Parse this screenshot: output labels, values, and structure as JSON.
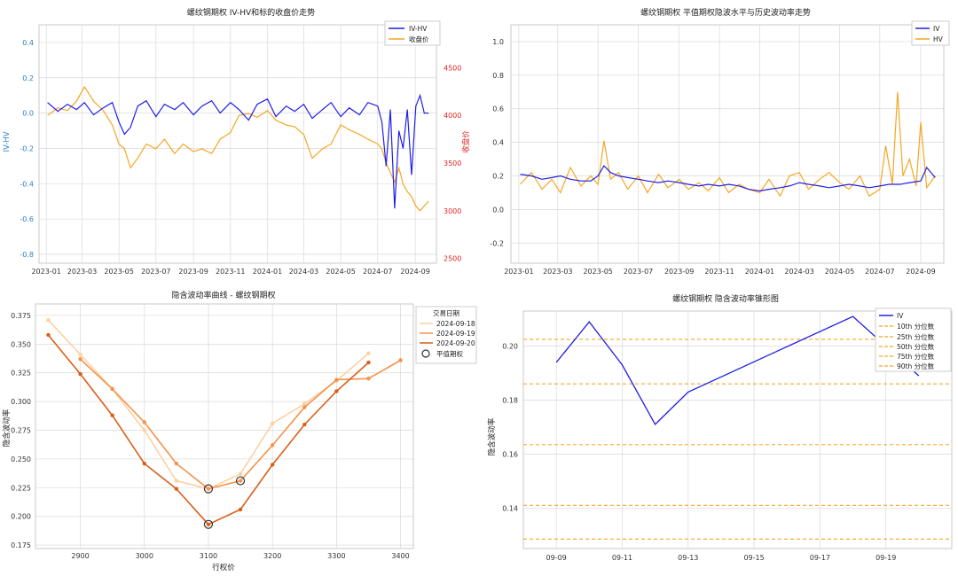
{
  "colors": {
    "blue": "#1f1fe8",
    "orange": "#f5a623",
    "red": "#e02020",
    "grid": "#d9d9d9"
  },
  "panels": [
    {
      "id": "p1",
      "title": "螺纹钢期权 IV-HV和标的收盘价走势",
      "ylabel": "IV-HV",
      "y2label": "收盘价",
      "xticks": [
        "2023-01",
        "2023-03",
        "2023-05",
        "2023-07",
        "2023-09",
        "2023-11",
        "2024-01",
        "2024-03",
        "2024-05",
        "2024-07",
        "2024-09"
      ],
      "yticks": [
        "0.4",
        "0.2",
        "0.0",
        "-0.2",
        "-0.4",
        "-0.6",
        "-0.8"
      ],
      "y2ticks": [
        "4500",
        "4000",
        "3500",
        "3000",
        "2500"
      ],
      "legend": [
        "IV-HV",
        "收盘价"
      ]
    },
    {
      "id": "p2",
      "title": "螺纹钢期权 平值期权隐波水平与历史波动率走势",
      "xticks": [
        "2023-01",
        "2023-03",
        "2023-05",
        "2023-07",
        "2023-09",
        "2023-11",
        "2024-01",
        "2024-03",
        "2024-05",
        "2024-07",
        "2024-09"
      ],
      "yticks": [
        "1.0",
        "0.8",
        "0.6",
        "0.4",
        "0.2",
        "0.0",
        "-0.2"
      ],
      "legend": [
        "IV",
        "HV"
      ]
    },
    {
      "id": "p3",
      "title": "隐含波动率曲线 - 螺纹钢期权",
      "xlabel": "行权价",
      "ylabel": "隐含波动率",
      "xticks": [
        "2900",
        "3000",
        "3100",
        "3200",
        "3300",
        "3400"
      ],
      "yticks": [
        "0.375",
        "0.350",
        "0.325",
        "0.300",
        "0.275",
        "0.250",
        "0.225",
        "0.200",
        "0.175"
      ],
      "legend_title": "交易日期",
      "legend": [
        "2024-09-18",
        "2024-09-19",
        "2024-09-20",
        "平值期权"
      ]
    },
    {
      "id": "p4",
      "title": "螺纹钢期权 隐含波动率锥形图",
      "ylabel": "隐含波动率",
      "xticks": [
        "09-09",
        "09-11",
        "09-13",
        "09-15",
        "09-17",
        "09-19"
      ],
      "yticks": [
        "0.20",
        "0.18",
        "0.16",
        "0.14"
      ],
      "legend": [
        "IV",
        "10th 分位数",
        "25th 分位数",
        "50th 分位数",
        "75th 分位数",
        "90th 分位数"
      ]
    }
  ],
  "chart_data": [
    {
      "type": "line",
      "title": "螺纹钢期权 IV-HV和标的收盘价走势",
      "ylabel": "IV-HV",
      "y2label": "收盘价",
      "ylim": [
        -0.85,
        0.5
      ],
      "y2lim": [
        2450,
        4950
      ],
      "x_range": [
        "2023-01",
        "2024-10"
      ],
      "series": [
        {
          "name": "IV-HV",
          "axis": "left",
          "color": "#1f1fe8",
          "x": [
            "2023-01-03",
            "2023-01-20",
            "2023-02-05",
            "2023-02-20",
            "2023-03-05",
            "2023-03-20",
            "2023-04-05",
            "2023-04-20",
            "2023-05-01",
            "2023-05-10",
            "2023-05-20",
            "2023-06-01",
            "2023-06-15",
            "2023-07-01",
            "2023-07-15",
            "2023-08-01",
            "2023-08-15",
            "2023-09-01",
            "2023-09-15",
            "2023-10-01",
            "2023-10-15",
            "2023-11-01",
            "2023-11-15",
            "2023-12-01",
            "2023-12-15",
            "2024-01-01",
            "2024-01-15",
            "2024-02-01",
            "2024-02-15",
            "2024-03-01",
            "2024-03-15",
            "2024-04-01",
            "2024-04-15",
            "2024-05-01",
            "2024-05-15",
            "2024-06-01",
            "2024-06-15",
            "2024-07-01",
            "2024-07-08",
            "2024-07-15",
            "2024-07-22",
            "2024-07-29",
            "2024-08-05",
            "2024-08-12",
            "2024-08-19",
            "2024-08-26",
            "2024-09-02",
            "2024-09-09",
            "2024-09-16",
            "2024-09-23"
          ],
          "y": [
            0.06,
            0.01,
            0.05,
            0.02,
            0.06,
            -0.01,
            0.03,
            0.06,
            -0.05,
            -0.12,
            -0.08,
            0.04,
            0.07,
            -0.02,
            0.05,
            0.02,
            0.06,
            -0.01,
            0.04,
            0.07,
            0.0,
            0.06,
            0.02,
            -0.04,
            0.05,
            0.08,
            -0.02,
            0.04,
            0.01,
            0.05,
            -0.03,
            0.02,
            0.06,
            -0.02,
            0.03,
            -0.01,
            0.06,
            0.04,
            -0.05,
            -0.3,
            0.02,
            -0.54,
            -0.1,
            -0.2,
            0.02,
            -0.35,
            0.04,
            0.1,
            0.0,
            0.0
          ]
        },
        {
          "name": "收盘价",
          "axis": "right",
          "color": "#f5a623",
          "x": [
            "2023-01-03",
            "2023-01-20",
            "2023-02-05",
            "2023-02-20",
            "2023-03-05",
            "2023-03-20",
            "2023-04-05",
            "2023-04-20",
            "2023-05-01",
            "2023-05-10",
            "2023-05-20",
            "2023-06-01",
            "2023-06-15",
            "2023-07-01",
            "2023-07-15",
            "2023-08-01",
            "2023-08-15",
            "2023-09-01",
            "2023-09-15",
            "2023-10-01",
            "2023-10-15",
            "2023-11-01",
            "2023-11-15",
            "2023-12-01",
            "2023-12-15",
            "2024-01-01",
            "2024-01-15",
            "2024-02-01",
            "2024-02-15",
            "2024-03-01",
            "2024-03-15",
            "2024-04-01",
            "2024-04-15",
            "2024-05-01",
            "2024-05-15",
            "2024-06-01",
            "2024-06-15",
            "2024-07-01",
            "2024-07-08",
            "2024-07-15",
            "2024-07-22",
            "2024-07-29",
            "2024-08-05",
            "2024-08-12",
            "2024-08-19",
            "2024-08-26",
            "2024-09-02",
            "2024-09-09",
            "2024-09-16",
            "2024-09-23"
          ],
          "y": [
            4000,
            4080,
            4050,
            4150,
            4300,
            4150,
            4050,
            3900,
            3700,
            3650,
            3450,
            3550,
            3700,
            3650,
            3750,
            3600,
            3700,
            3620,
            3650,
            3600,
            3750,
            3820,
            4000,
            4020,
            3980,
            4050,
            3950,
            3900,
            3880,
            3800,
            3550,
            3650,
            3700,
            3900,
            3850,
            3800,
            3750,
            3700,
            3650,
            3500,
            3400,
            3300,
            3450,
            3280,
            3200,
            3150,
            3050,
            3000,
            3050,
            3100
          ]
        }
      ]
    },
    {
      "type": "line",
      "title": "螺纹钢期权 平值期权隐波水平与历史波动率走势",
      "ylim": [
        -0.32,
        1.1
      ],
      "x_range": [
        "2023-01",
        "2024-10"
      ],
      "series": [
        {
          "name": "IV",
          "color": "#1f1fe8",
          "x": [
            "2023-01-03",
            "2023-01-20",
            "2023-02-05",
            "2023-02-20",
            "2023-03-05",
            "2023-03-20",
            "2023-04-05",
            "2023-04-20",
            "2023-05-01",
            "2023-05-10",
            "2023-05-20",
            "2023-06-01",
            "2023-06-15",
            "2023-07-01",
            "2023-07-15",
            "2023-08-01",
            "2023-08-15",
            "2023-09-01",
            "2023-09-15",
            "2023-10-01",
            "2023-10-15",
            "2023-11-01",
            "2023-11-15",
            "2023-12-01",
            "2023-12-15",
            "2024-01-01",
            "2024-01-15",
            "2024-02-01",
            "2024-02-15",
            "2024-03-01",
            "2024-03-15",
            "2024-04-01",
            "2024-04-15",
            "2024-05-01",
            "2024-05-15",
            "2024-06-01",
            "2024-06-15",
            "2024-07-01",
            "2024-07-15",
            "2024-08-01",
            "2024-08-15",
            "2024-09-01",
            "2024-09-10",
            "2024-09-23"
          ],
          "y": [
            0.21,
            0.2,
            0.18,
            0.19,
            0.2,
            0.18,
            0.17,
            0.17,
            0.2,
            0.26,
            0.22,
            0.2,
            0.19,
            0.18,
            0.17,
            0.16,
            0.17,
            0.16,
            0.15,
            0.14,
            0.15,
            0.14,
            0.15,
            0.14,
            0.12,
            0.11,
            0.12,
            0.13,
            0.14,
            0.16,
            0.15,
            0.14,
            0.13,
            0.14,
            0.15,
            0.14,
            0.13,
            0.14,
            0.15,
            0.15,
            0.16,
            0.17,
            0.25,
            0.19
          ]
        },
        {
          "name": "HV",
          "color": "#f5a623",
          "x": [
            "2023-01-03",
            "2023-01-20",
            "2023-02-05",
            "2023-02-20",
            "2023-03-05",
            "2023-03-20",
            "2023-04-05",
            "2023-04-20",
            "2023-05-01",
            "2023-05-10",
            "2023-05-20",
            "2023-06-01",
            "2023-06-15",
            "2023-07-01",
            "2023-07-15",
            "2023-08-01",
            "2023-08-15",
            "2023-09-01",
            "2023-09-15",
            "2023-10-01",
            "2023-10-15",
            "2023-11-01",
            "2023-11-15",
            "2023-12-01",
            "2023-12-15",
            "2024-01-01",
            "2024-01-15",
            "2024-02-01",
            "2024-02-15",
            "2024-03-01",
            "2024-03-15",
            "2024-04-01",
            "2024-04-15",
            "2024-05-01",
            "2024-05-15",
            "2024-06-01",
            "2024-06-15",
            "2024-07-01",
            "2024-07-10",
            "2024-07-20",
            "2024-07-28",
            "2024-08-05",
            "2024-08-15",
            "2024-08-25",
            "2024-09-01",
            "2024-09-10",
            "2024-09-23"
          ],
          "y": [
            0.15,
            0.22,
            0.12,
            0.18,
            0.1,
            0.25,
            0.14,
            0.2,
            0.15,
            0.41,
            0.18,
            0.22,
            0.12,
            0.2,
            0.1,
            0.21,
            0.13,
            0.18,
            0.12,
            0.16,
            0.11,
            0.19,
            0.1,
            0.15,
            0.12,
            0.1,
            0.18,
            0.08,
            0.2,
            0.22,
            0.12,
            0.18,
            0.22,
            0.16,
            0.12,
            0.2,
            0.08,
            0.12,
            0.38,
            0.15,
            0.7,
            0.2,
            0.3,
            0.14,
            0.52,
            0.13,
            0.2
          ]
        }
      ]
    },
    {
      "type": "line",
      "title": "隐含波动率曲线 - 螺纹钢期权",
      "xlabel": "行权价",
      "ylabel": "隐含波动率",
      "xlim": [
        2830,
        3420
      ],
      "ylim": [
        0.172,
        0.385
      ],
      "series": [
        {
          "name": "2024-09-18",
          "color": "#fdd0a2",
          "x": [
            2850,
            2900,
            2950,
            3000,
            3050,
            3100,
            3150,
            3200,
            3250,
            3300,
            3350
          ],
          "y": [
            0.371,
            0.341,
            0.311,
            0.275,
            0.231,
            0.224,
            0.237,
            0.281,
            0.298,
            0.318,
            0.342
          ]
        },
        {
          "name": "2024-09-19",
          "color": "#f5924a",
          "x": [
            2900,
            2950,
            3000,
            3050,
            3100,
            3150,
            3200,
            3250,
            3300,
            3350,
            3400
          ],
          "y": [
            0.337,
            0.311,
            0.282,
            0.246,
            0.224,
            0.231,
            0.262,
            0.295,
            0.319,
            0.32,
            0.336
          ]
        },
        {
          "name": "2024-09-20",
          "color": "#d95f18",
          "x": [
            2850,
            2900,
            2950,
            3000,
            3050,
            3100,
            3150,
            3200,
            3250,
            3300,
            3350
          ],
          "y": [
            0.358,
            0.324,
            0.288,
            0.246,
            0.224,
            0.193,
            0.206,
            0.245,
            0.28,
            0.309,
            0.334
          ]
        }
      ],
      "atm_points": [
        {
          "x": 3100,
          "y": 0.224
        },
        {
          "x": 3150,
          "y": 0.231
        },
        {
          "x": 3100,
          "y": 0.193
        }
      ]
    },
    {
      "type": "line",
      "title": "螺纹钢期权 隐含波动率锥形图",
      "ylabel": "隐含波动率",
      "xlim": [
        "2024-09-08",
        "2024-09-21"
      ],
      "ylim": [
        0.125,
        0.213
      ],
      "series": [
        {
          "name": "IV",
          "color": "#1f1fe8",
          "x": [
            "2024-09-09",
            "2024-09-10",
            "2024-09-11",
            "2024-09-12",
            "2024-09-13",
            "2024-09-18",
            "2024-09-20"
          ],
          "y": [
            0.194,
            0.209,
            0.193,
            0.171,
            0.183,
            0.211,
            0.189
          ]
        }
      ],
      "quantiles": [
        {
          "name": "10th 分位数",
          "y": 0.1285
        },
        {
          "name": "25th 分位数",
          "y": 0.141
        },
        {
          "name": "50th 分位数",
          "y": 0.1635
        },
        {
          "name": "75th 分位数",
          "y": 0.186
        },
        {
          "name": "90th 分位数",
          "y": 0.2025
        }
      ]
    }
  ]
}
